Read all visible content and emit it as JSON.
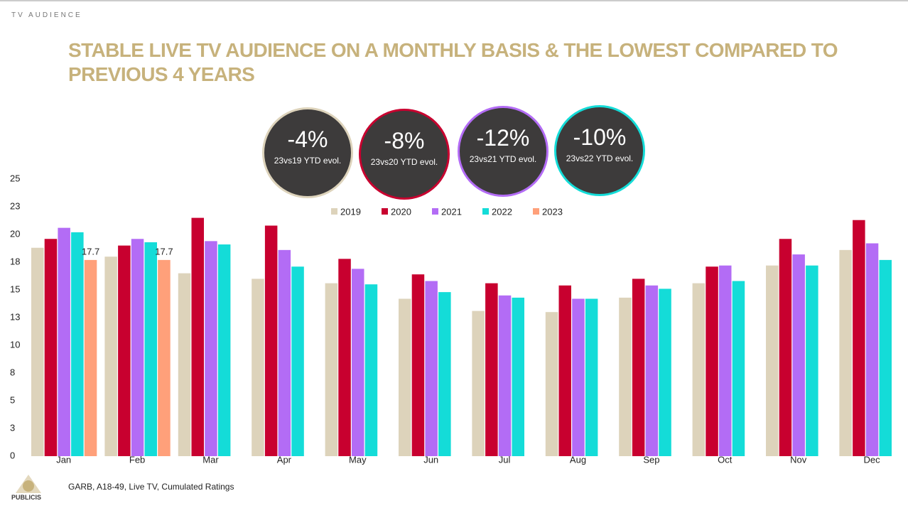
{
  "header": {
    "section": "TV AUDIENCE",
    "title": "STABLE LIVE TV AUDIENCE ON A MONTHLY BASIS & THE LOWEST COMPARED TO PREVIOUS 4 YEARS"
  },
  "badges": [
    {
      "value": "-4%",
      "caption": "23vs19 YTD evol.",
      "color": "#ddd3bb"
    },
    {
      "value": "-8%",
      "caption": "23vs20 YTD evol.",
      "color": "#c8002f"
    },
    {
      "value": "-12%",
      "caption": "23vs21 YTD evol.",
      "color": "#b36cf5"
    },
    {
      "value": "-10%",
      "caption": "23vs22 YTD evol.",
      "color": "#14dcd8"
    }
  ],
  "chart_data": {
    "type": "bar",
    "categories": [
      "Jan",
      "Feb",
      "Mar",
      "Apr",
      "May",
      "Jun",
      "Jul",
      "Aug",
      "Sep",
      "Oct",
      "Nov",
      "Dec"
    ],
    "series": [
      {
        "name": "2019",
        "color": "#ddd3bb",
        "values": [
          18.8,
          18.0,
          16.5,
          16.0,
          15.6,
          14.2,
          13.1,
          13.0,
          14.3,
          15.6,
          17.2,
          18.6
        ]
      },
      {
        "name": "2020",
        "color": "#c8002f",
        "values": [
          19.6,
          19.0,
          21.5,
          20.8,
          17.8,
          16.4,
          15.6,
          15.4,
          16.0,
          17.1,
          19.6,
          21.3
        ]
      },
      {
        "name": "2021",
        "color": "#b36cf5",
        "values": [
          20.6,
          19.6,
          19.4,
          18.6,
          16.9,
          15.8,
          14.5,
          14.2,
          15.4,
          17.2,
          18.2,
          19.2
        ]
      },
      {
        "name": "2022",
        "color": "#14dcd8",
        "values": [
          20.2,
          19.3,
          19.1,
          17.1,
          15.5,
          14.8,
          14.3,
          14.2,
          15.1,
          15.8,
          17.2,
          17.7
        ]
      },
      {
        "name": "2023",
        "color": "#ffa07a",
        "values": [
          17.7,
          17.7,
          null,
          null,
          null,
          null,
          null,
          null,
          null,
          null,
          null,
          null
        ],
        "data_labels": true
      }
    ],
    "ylim": [
      0,
      25
    ],
    "yticks": [
      0,
      {
        "value": 2.5,
        "label": "3"
      },
      5,
      {
        "value": 7.5,
        "label": "8"
      },
      10,
      {
        "value": 12.5,
        "label": "13"
      },
      15,
      {
        "value": 17.5,
        "label": "18"
      },
      20,
      {
        "value": 22.5,
        "label": "23"
      },
      25
    ],
    "legend": "top",
    "grid": false
  },
  "footer": {
    "source": "GARB, A18-49, Live TV, Cumulated Ratings",
    "logo": "PUBLICIS"
  }
}
